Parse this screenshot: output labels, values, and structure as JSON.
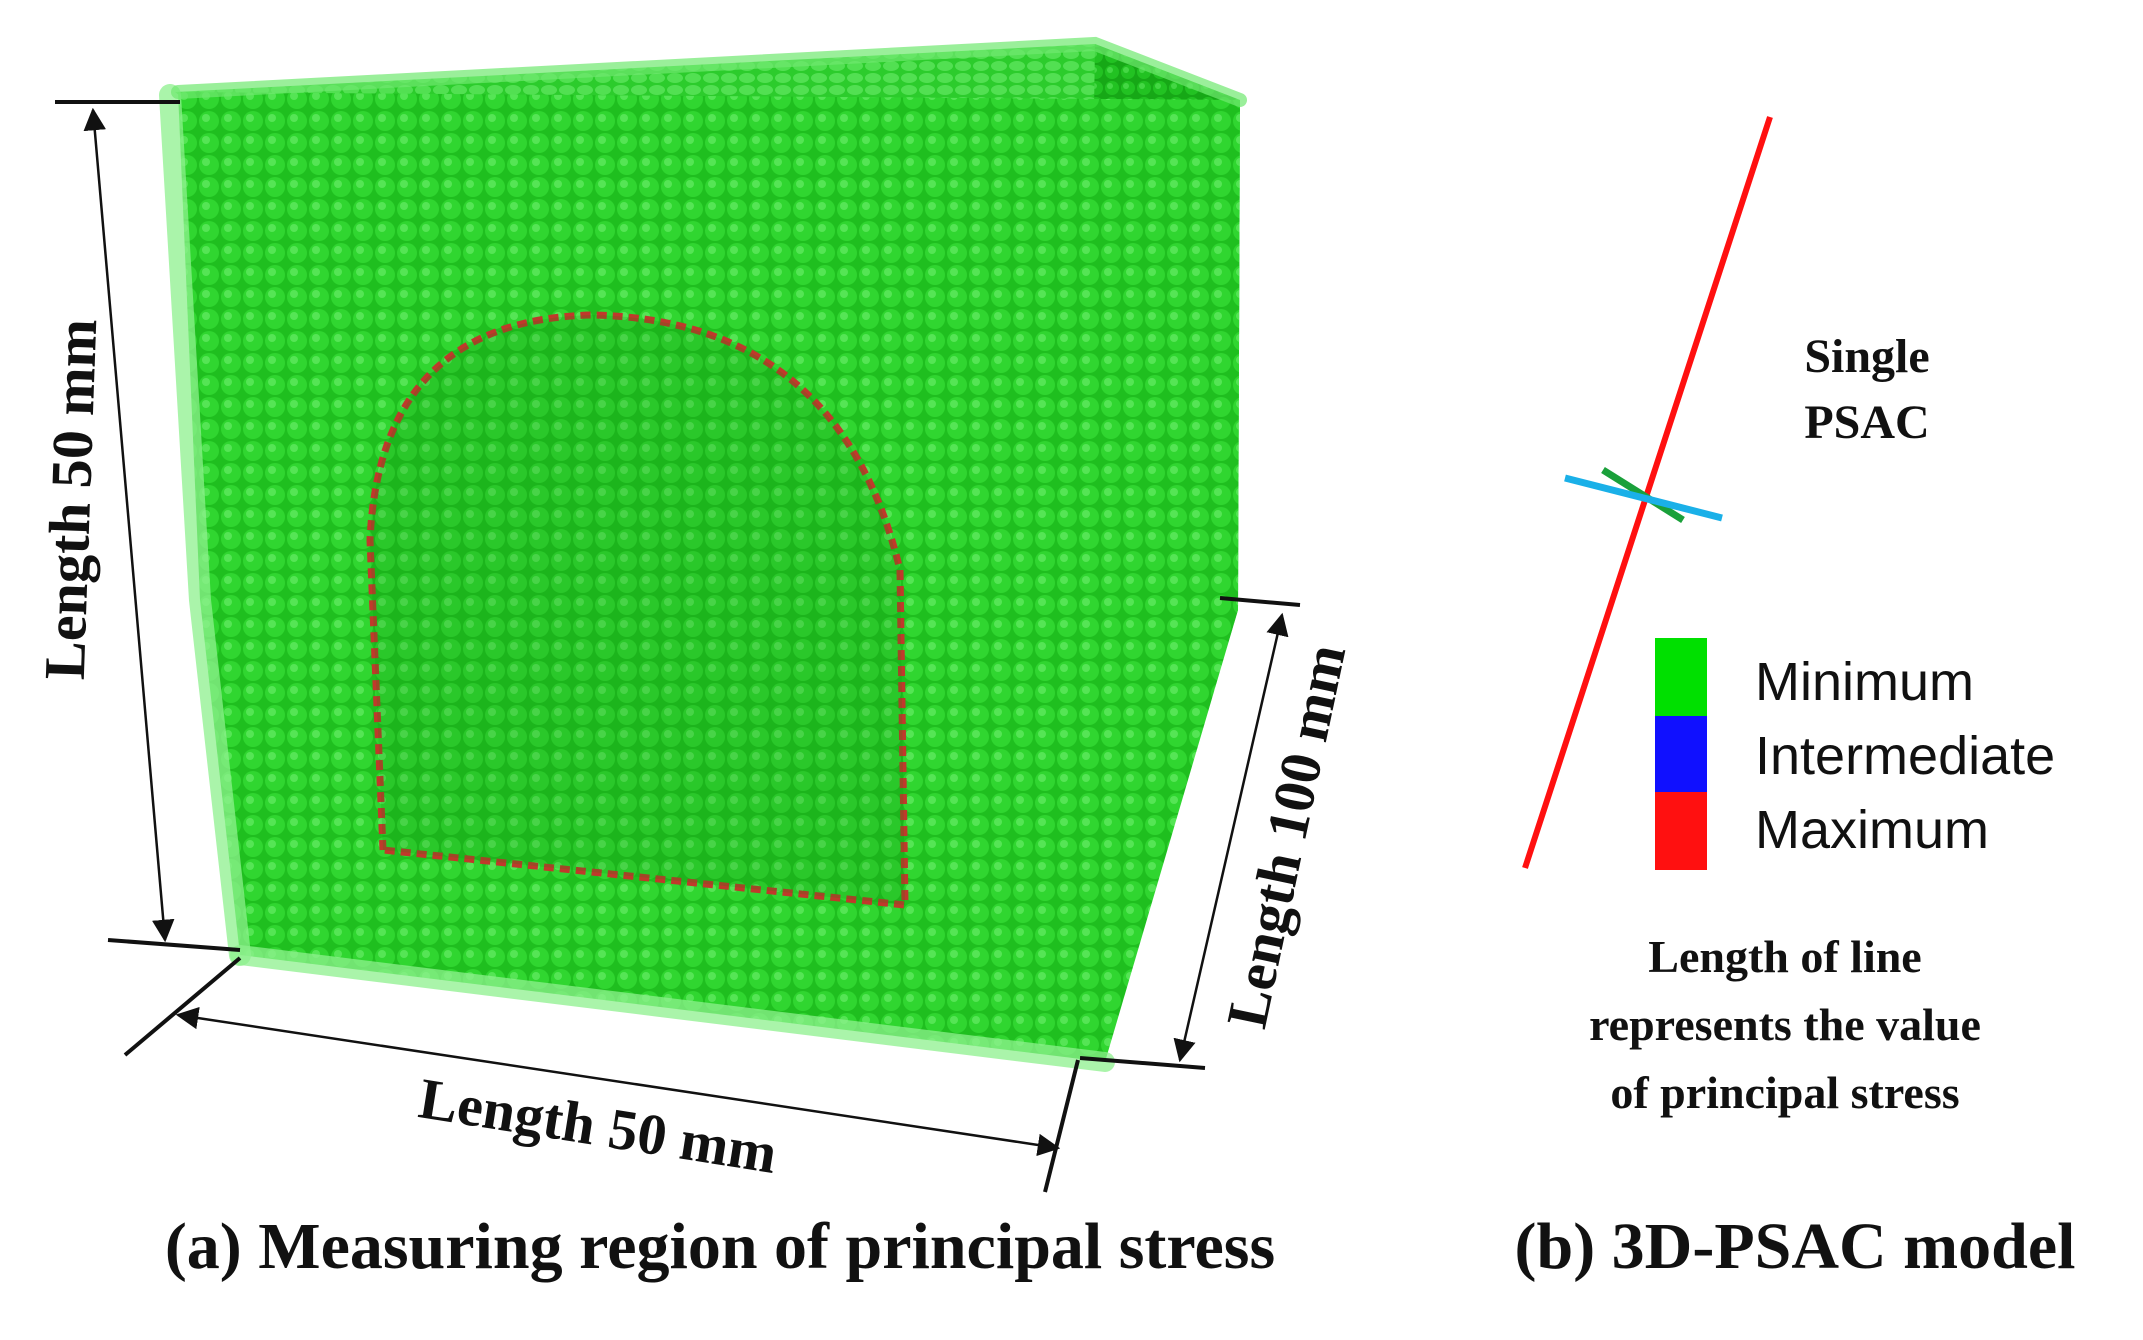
{
  "panel_a": {
    "caption": "(a) Measuring region of principal stress",
    "height_label": "Length 50 mm",
    "width_label": "Length 50 mm",
    "depth_label": "Length 100 mm",
    "colors": {
      "block": "#22cc22",
      "block_light": "#7be87b",
      "opening_edge": "#c0392b"
    }
  },
  "panel_b": {
    "caption": "(b) 3D-PSAC model",
    "single_label_line1": "Single",
    "single_label_line2": "PSAC",
    "legend": [
      {
        "label": "Minimum",
        "color": "#00e000"
      },
      {
        "label": "Intermediate",
        "color": "#1010ff"
      },
      {
        "label": "Maximum",
        "color": "#ff1010"
      }
    ],
    "note_line1": "Length of line",
    "note_line2": "represents the value",
    "note_line3": "of principal stress",
    "colors": {
      "max_line": "#ff1010",
      "mid_line": "#1ab0e8",
      "min_line": "#1aa03a"
    }
  }
}
